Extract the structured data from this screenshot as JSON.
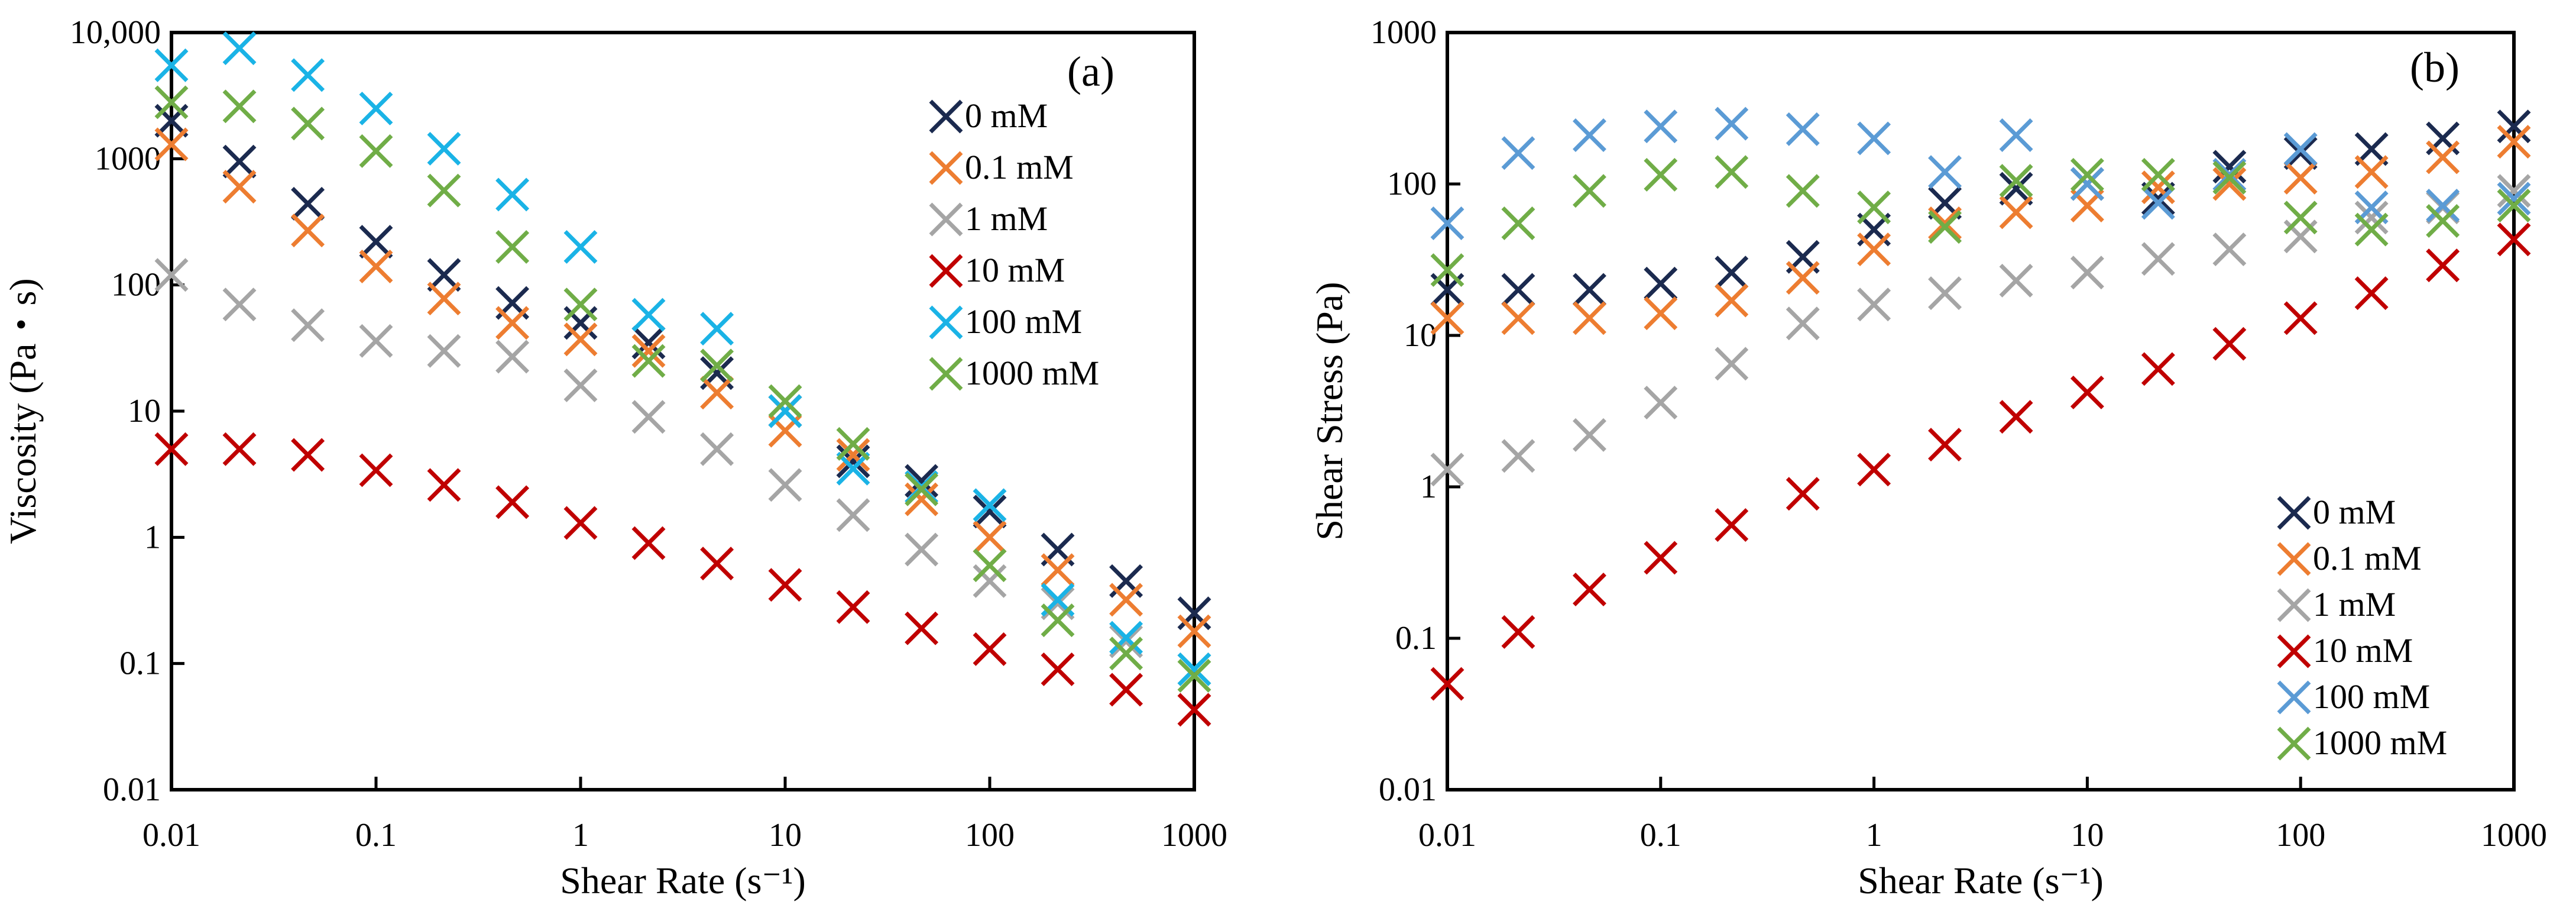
{
  "chart_data": [
    {
      "type": "scatter",
      "panel_label": "(a)",
      "xlabel": "Shear Rate (s⁻¹)",
      "ylabel": "Viscosity (Pa・s)",
      "x_scale": "log",
      "y_scale": "log",
      "xlim": [
        0.01,
        1000
      ],
      "ylim": [
        0.01,
        10000
      ],
      "x_ticks": [
        "0.01",
        "0.1",
        "1",
        "10",
        "100",
        "1000"
      ],
      "y_ticks": [
        "0.01",
        "0.1",
        "1",
        "10",
        "100",
        "1000",
        "10,000"
      ],
      "legend_position": "top-right",
      "marker": "×",
      "x": [
        0.01,
        0.0215,
        0.0464,
        0.1,
        0.215,
        0.464,
        1,
        2.15,
        4.64,
        10,
        21.5,
        46.4,
        100,
        215,
        464,
        1000
      ],
      "series": [
        {
          "name": "0 mM",
          "color": "#1b2a4f",
          "values": [
            2000,
            950,
            440,
            220,
            120,
            72,
            50,
            35,
            20,
            10,
            4.0,
            2.8,
            1.6,
            0.8,
            0.45,
            0.25
          ]
        },
        {
          "name": "0.1 mM",
          "color": "#ed7d31",
          "values": [
            1300,
            600,
            270,
            140,
            78,
            50,
            37,
            30,
            14,
            7,
            4.5,
            2.0,
            1.0,
            0.55,
            0.32,
            0.18
          ]
        },
        {
          "name": "1 mM",
          "color": "#a5a5a5",
          "values": [
            120,
            70,
            48,
            36,
            30,
            27,
            16,
            9,
            5,
            2.6,
            1.5,
            0.8,
            0.45,
            0.3,
            0.15,
            0.09
          ]
        },
        {
          "name": "10 mM",
          "color": "#c00000",
          "values": [
            5,
            5,
            4.5,
            3.4,
            2.6,
            1.9,
            1.3,
            0.9,
            0.62,
            0.42,
            0.28,
            0.19,
            0.13,
            0.09,
            0.062,
            0.043
          ]
        },
        {
          "name": "100 mM",
          "color": "#1ab3e6",
          "values": [
            5500,
            7500,
            4600,
            2500,
            1200,
            520,
            200,
            58,
            45,
            10,
            3.5,
            2.5,
            1.8,
            0.32,
            0.16,
            0.09
          ]
        },
        {
          "name": "1000 mM",
          "color": "#70ad47",
          "values": [
            2800,
            2600,
            1900,
            1150,
            560,
            200,
            70,
            25,
            23,
            12,
            5.5,
            2.4,
            0.6,
            0.22,
            0.12,
            0.08
          ]
        }
      ]
    },
    {
      "type": "scatter",
      "panel_label": "(b)",
      "xlabel": "Shear Rate (s⁻¹)",
      "ylabel": "Shear Stress (Pa)",
      "x_scale": "log",
      "y_scale": "log",
      "xlim": [
        0.01,
        1000
      ],
      "ylim": [
        0.01,
        1000
      ],
      "x_ticks": [
        "0.01",
        "0.1",
        "1",
        "10",
        "100",
        "1000"
      ],
      "y_ticks": [
        "0.01",
        "0.1",
        "1",
        "10",
        "100",
        "1000"
      ],
      "legend_position": "bottom-right",
      "marker": "×",
      "x": [
        0.01,
        0.0215,
        0.0464,
        0.1,
        0.215,
        0.464,
        1,
        2.15,
        4.64,
        10,
        21.5,
        46.4,
        100,
        215,
        464,
        1000
      ],
      "series": [
        {
          "name": "0 mM",
          "color": "#1b2a4f",
          "values": [
            20,
            20,
            20,
            22,
            26,
            33,
            50,
            75,
            93,
            100,
            80,
            130,
            160,
            170,
            200,
            240
          ]
        },
        {
          "name": "0.1 mM",
          "color": "#ed7d31",
          "values": [
            13,
            13,
            13,
            14,
            17,
            24,
            37,
            55,
            65,
            72,
            95,
            100,
            110,
            120,
            150,
            190
          ]
        },
        {
          "name": "1 mM",
          "color": "#a5a5a5",
          "values": [
            1.3,
            1.6,
            2.2,
            3.6,
            6.5,
            12,
            16,
            19,
            23,
            26,
            32,
            37,
            45,
            60,
            70,
            90
          ]
        },
        {
          "name": "10 mM",
          "color": "#c00000",
          "values": [
            0.05,
            0.11,
            0.21,
            0.34,
            0.56,
            0.9,
            1.3,
            1.9,
            2.9,
            4.2,
            6,
            8.8,
            13,
            19,
            29,
            43
          ]
        },
        {
          "name": "100 mM",
          "color": "#5b9bd5",
          "values": [
            55,
            160,
            210,
            240,
            250,
            230,
            200,
            120,
            210,
            100,
            75,
            115,
            170,
            70,
            72,
            80
          ]
        },
        {
          "name": "1000 mM",
          "color": "#70ad47",
          "values": [
            27,
            55,
            90,
            115,
            120,
            90,
            70,
            52,
            105,
            115,
            115,
            110,
            60,
            50,
            57,
            72
          ]
        }
      ]
    }
  ]
}
